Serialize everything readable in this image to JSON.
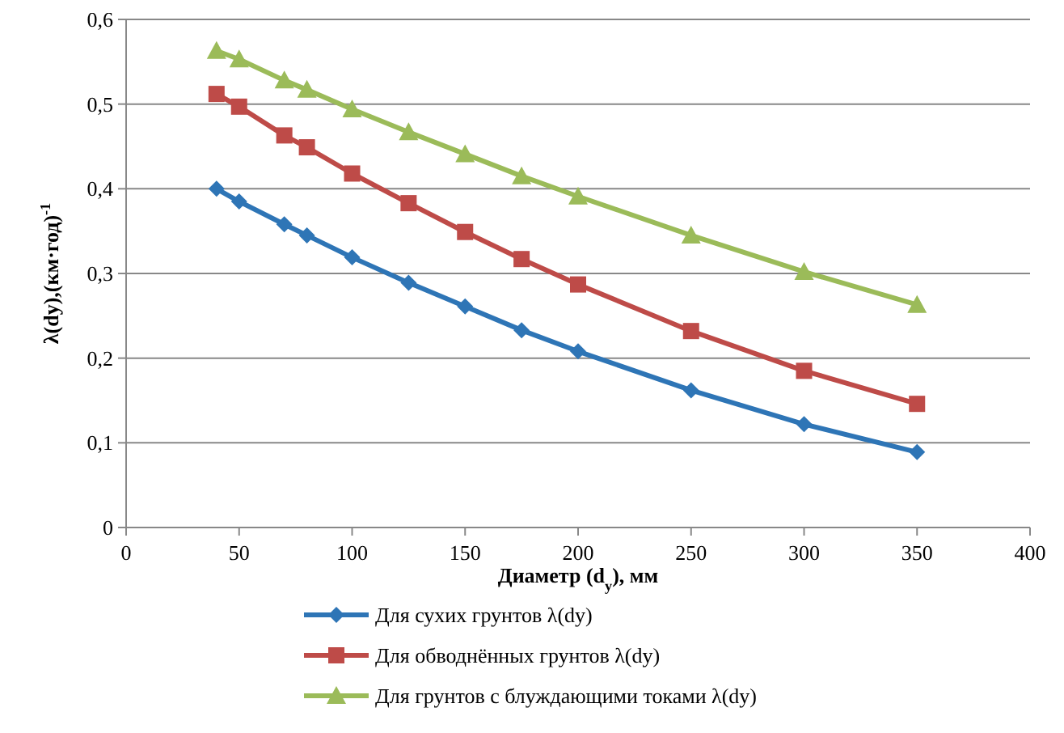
{
  "chart_data": {
    "type": "line",
    "xlabel": "Диаметр (d$_{y}$), мм",
    "ylabel": "λ(dy),(км·год)$^{-1}$",
    "x": [
      40,
      50,
      70,
      80,
      100,
      125,
      150,
      175,
      200,
      250,
      300,
      350
    ],
    "series": [
      {
        "name": "Для сухих грунтов λ(dy)",
        "color": "#2e75b6",
        "marker": "diamond",
        "values": [
          0.4,
          0.385,
          0.358,
          0.345,
          0.319,
          0.289,
          0.261,
          0.233,
          0.208,
          0.162,
          0.122,
          0.089
        ]
      },
      {
        "name": "Для обводнённых грунтов λ(dy)",
        "color": "#be4b48",
        "marker": "square",
        "values": [
          0.512,
          0.497,
          0.463,
          0.449,
          0.418,
          0.383,
          0.349,
          0.317,
          0.287,
          0.232,
          0.185,
          0.146
        ]
      },
      {
        "name": "Для грунтов с блуждающими токами λ(dy)",
        "color": "#9bbb59",
        "marker": "triangle",
        "values": [
          0.563,
          0.553,
          0.528,
          0.517,
          0.494,
          0.467,
          0.441,
          0.415,
          0.391,
          0.345,
          0.302,
          0.263
        ]
      }
    ],
    "xlim": [
      0,
      400
    ],
    "xticks": [
      0,
      50,
      100,
      150,
      200,
      250,
      300,
      350,
      400
    ],
    "ylim": [
      0,
      0.6
    ],
    "yticks": [
      {
        "value": 0,
        "label": "0"
      },
      {
        "value": 0.1,
        "label": "0,1"
      },
      {
        "value": 0.2,
        "label": "0,2"
      },
      {
        "value": 0.3,
        "label": "0,3"
      },
      {
        "value": 0.4,
        "label": "0,4"
      },
      {
        "value": 0.5,
        "label": "0,5"
      },
      {
        "value": 0.6,
        "label": "0,6"
      }
    ],
    "grid": "y",
    "legend": "bottom",
    "line_style": "solid"
  }
}
